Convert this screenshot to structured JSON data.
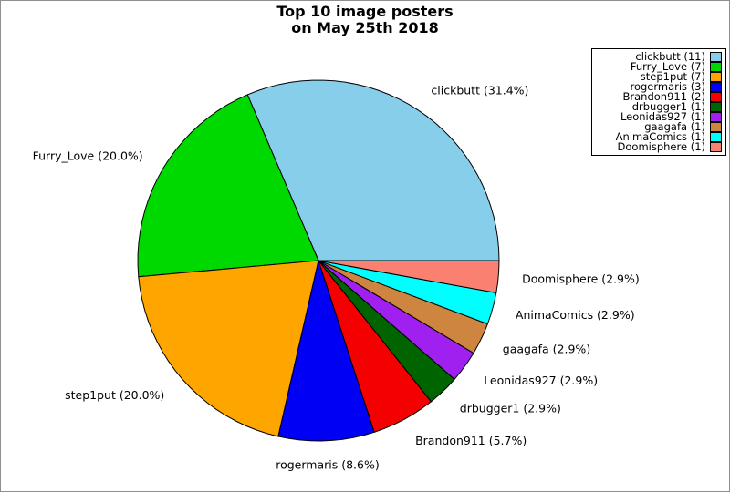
{
  "title": {
    "line1": "Top 10 image posters",
    "line2": "on May 25th 2018"
  },
  "chart_data": {
    "type": "pie",
    "title": "Top 10 image posters on May 25th 2018",
    "total_images": 35,
    "start_angle_deg": 0,
    "direction": "counterclockwise",
    "legend_position": "top-right",
    "slices": [
      {
        "label": "clickbutt",
        "count": 11,
        "percent": 31.4,
        "color": "#87CEEB",
        "wedge_label": "clickbutt (31.4%)",
        "legend_label": "clickbutt (11)"
      },
      {
        "label": "Furry_Love",
        "count": 7,
        "percent": 20.0,
        "color": "#00D900",
        "wedge_label": "Furry_Love (20.0%)",
        "legend_label": "Furry_Love (7)"
      },
      {
        "label": "step1put",
        "count": 7,
        "percent": 20.0,
        "color": "#FFA500",
        "wedge_label": "step1put (20.0%)",
        "legend_label": "step1put (7)"
      },
      {
        "label": "rogermaris",
        "count": 3,
        "percent": 8.6,
        "color": "#0000F5",
        "wedge_label": "rogermaris (8.6%)",
        "legend_label": "rogermaris (3)"
      },
      {
        "label": "Brandon911",
        "count": 2,
        "percent": 5.7,
        "color": "#F50000",
        "wedge_label": "Brandon911 (5.7%)",
        "legend_label": "Brandon911 (2)"
      },
      {
        "label": "drbugger1",
        "count": 1,
        "percent": 2.9,
        "color": "#006400",
        "wedge_label": "drbugger1 (2.9%)",
        "legend_label": "drbugger1 (1)"
      },
      {
        "label": "Leonidas927",
        "count": 1,
        "percent": 2.9,
        "color": "#A020F0",
        "wedge_label": "Leonidas927 (2.9%)",
        "legend_label": "Leonidas927 (1)"
      },
      {
        "label": "gaagafa",
        "count": 1,
        "percent": 2.9,
        "color": "#CD853F",
        "wedge_label": "gaagafa (2.9%)",
        "legend_label": "gaagafa (1)"
      },
      {
        "label": "AnimaComics",
        "count": 1,
        "percent": 2.9,
        "color": "#00FFFF",
        "wedge_label": "AnimaComics (2.9%)",
        "legend_label": "AnimaComics (1)"
      },
      {
        "label": "Doomisphere",
        "count": 1,
        "percent": 2.9,
        "color": "#FA8072",
        "wedge_label": "Doomisphere (2.9%)",
        "legend_label": "Doomisphere (1)"
      }
    ]
  }
}
